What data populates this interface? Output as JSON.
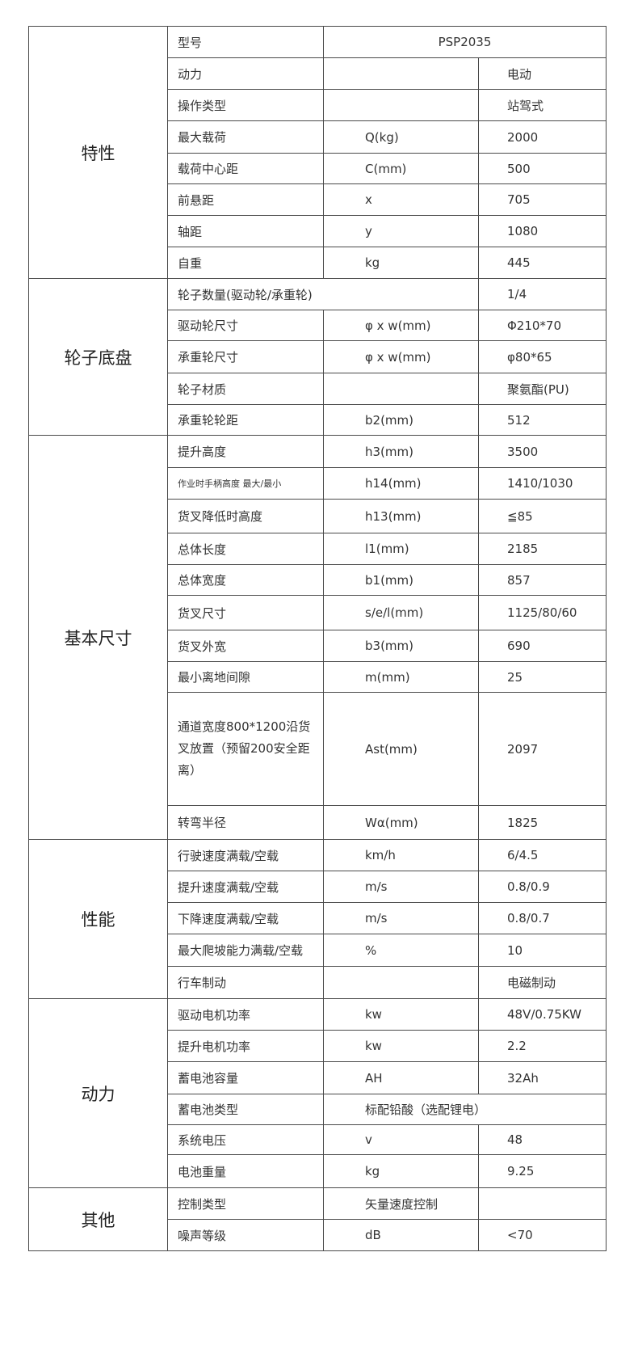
{
  "sections": [
    {
      "title": "特性",
      "rows": [
        {
          "label": "型号",
          "value": "PSP2035",
          "merge": "unit-value-center"
        },
        {
          "label": "动力",
          "unit": "",
          "value": "电动"
        },
        {
          "label": "操作类型",
          "unit": "",
          "value": "站驾式"
        },
        {
          "label": "最大载荷",
          "unit": "Q(kg)",
          "value": "2000"
        },
        {
          "label": "载荷中心距",
          "unit": "C(mm)",
          "value": "500"
        },
        {
          "label": "前悬距",
          "unit": "x",
          "value": "705"
        },
        {
          "label": "轴距",
          "unit": "y",
          "value": "1080"
        },
        {
          "label": "自重",
          "unit": "kg",
          "value": "445"
        }
      ]
    },
    {
      "title": "轮子底盘",
      "rows": [
        {
          "label": "轮子数量(驱动轮/承重轮)",
          "value": "1/4",
          "merge": "label-unit"
        },
        {
          "label": "驱动轮尺寸",
          "unit": "φ x w(mm)",
          "value": "Φ210*70"
        },
        {
          "label": "承重轮尺寸",
          "unit": "φ x w(mm)",
          "value": "φ80*65"
        },
        {
          "label": "轮子材质",
          "unit": "",
          "value": "聚氨酯(PU)"
        },
        {
          "label": "承重轮轮距",
          "unit": "b2(mm)",
          "value": "512"
        }
      ]
    },
    {
      "title": "基本尺寸",
      "rows": [
        {
          "label": "提升高度",
          "unit": "h3(mm)",
          "value": "3500"
        },
        {
          "label": "作业时手柄高度  最大/最小",
          "unit": "h14(mm)",
          "value": "1410/1030",
          "style": "small"
        },
        {
          "label": "货叉降低时高度",
          "unit": "h13(mm)",
          "value": "≦85"
        },
        {
          "label": "总体长度",
          "unit": "l1(mm)",
          "value": "2185"
        },
        {
          "label": "总体宽度",
          "unit": "b1(mm)",
          "value": "857"
        },
        {
          "label": "货叉尺寸",
          "unit": "s/e/l(mm)",
          "value": "1125/80/60"
        },
        {
          "label": "货叉外宽",
          "unit": "b3(mm)",
          "value": "690"
        },
        {
          "label": "最小离地间隙",
          "unit": "m(mm)",
          "value": "25"
        },
        {
          "label": "通道宽度800*1200沿货叉放置（预留200安全距离）",
          "unit": "Ast(mm)",
          "value": "2097",
          "style": "multi"
        },
        {
          "label": "转弯半径",
          "unit": "Wα(mm)",
          "value": "1825"
        }
      ]
    },
    {
      "title": "性能",
      "rows": [
        {
          "label": "行驶速度满载/空载",
          "unit": "km/h",
          "value": "6/4.5"
        },
        {
          "label": "提升速度满载/空载",
          "unit": "m/s",
          "value": "0.8/0.9"
        },
        {
          "label": "下降速度满载/空载",
          "unit": "m/s",
          "value": "0.8/0.7"
        },
        {
          "label": "最大爬坡能力满载/空载",
          "unit": "%",
          "value": "10"
        },
        {
          "label": "行车制动",
          "unit": "",
          "value": "电磁制动"
        }
      ]
    },
    {
      "title": "动力",
      "rows": [
        {
          "label": "驱动电机功率",
          "unit": "kw",
          "value": "48V/0.75KW"
        },
        {
          "label": "提升电机功率",
          "unit": "kw",
          "value": "2.2"
        },
        {
          "label": "蓄电池容量",
          "unit": "AH",
          "value": "32Ah"
        },
        {
          "label": "蓄电池类型",
          "value": "标配铅酸（选配锂电）",
          "merge": "unit-value-left"
        },
        {
          "label": "系统电压",
          "unit": "v",
          "value": "48"
        },
        {
          "label": "电池重量",
          "unit": "kg",
          "value": "9.25"
        }
      ]
    },
    {
      "title": "其他",
      "rows": [
        {
          "label": "控制类型",
          "unit": "矢量速度控制",
          "value": ""
        },
        {
          "label": "噪声等级",
          "unit": "dB",
          "value": "<70"
        }
      ]
    }
  ]
}
